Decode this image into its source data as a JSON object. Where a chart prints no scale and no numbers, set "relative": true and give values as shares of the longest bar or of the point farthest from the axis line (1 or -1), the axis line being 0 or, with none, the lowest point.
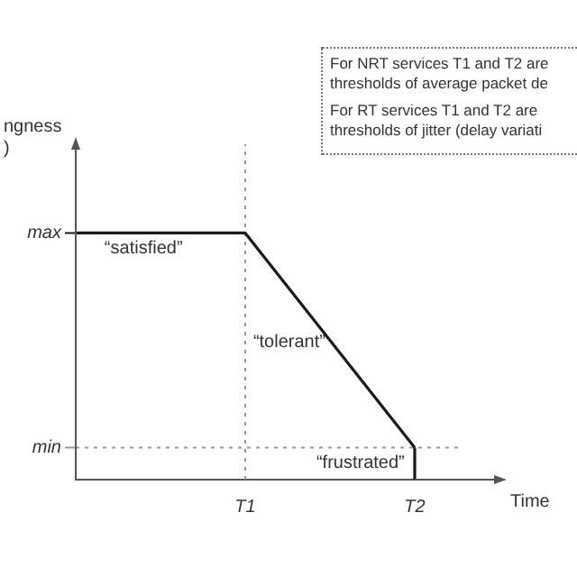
{
  "chart_data": {
    "type": "line",
    "relative": true,
    "xlabel": "Time",
    "ylabel": "ngness\n)",
    "categories": [
      null,
      "T1",
      "T2"
    ],
    "series": [
      {
        "color": "#1a1a1a",
        "values": [
          1,
          1,
          0.13
        ]
      }
    ],
    "ref_lines": [
      {
        "axis": "y",
        "value": 1,
        "label": "max",
        "line_style": "solid",
        "color": "#1a1a1a"
      },
      {
        "axis": "y",
        "value": 0.13,
        "label": "min",
        "line_style": "dotted",
        "color": "#999999"
      },
      {
        "axis": "x",
        "value": "T1",
        "line_style": "dotted",
        "color": "#999999"
      },
      {
        "axis": "x",
        "value": "T2",
        "line_style": "solid",
        "color": "#1a1a1a"
      }
    ],
    "annotations": [
      "“satisfied”",
      "“tolerant”",
      "“frustrated”",
      "For NRT services T1 and T2 are thresholds of average packet de",
      "For RT services T1 and T2 are thresholds of jitter (delay variati"
    ],
    "grid": false,
    "legend": false,
    "marker": "none",
    "line_style": "solid",
    "tick_labels": "x"
  }
}
